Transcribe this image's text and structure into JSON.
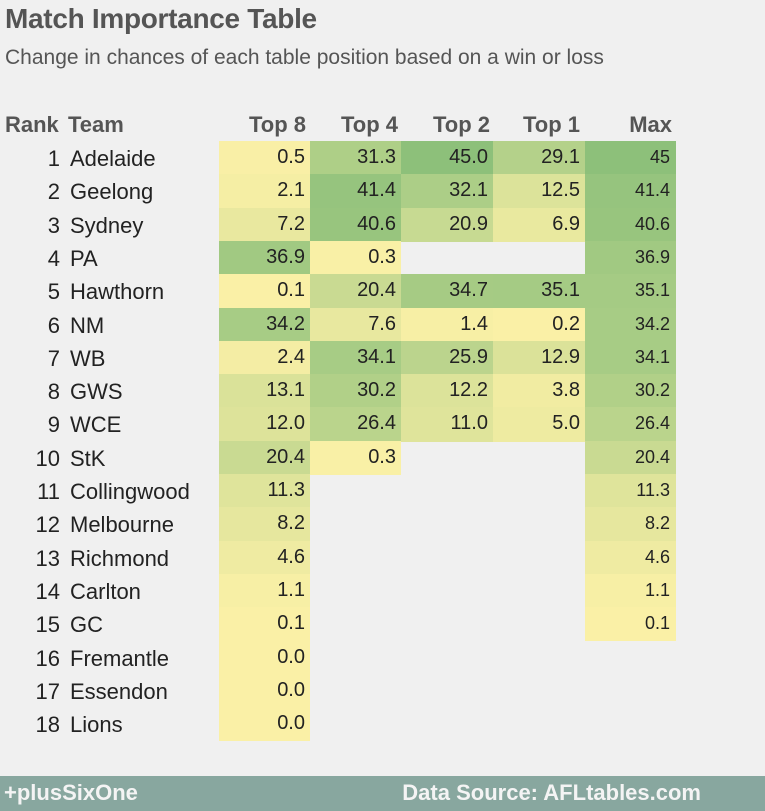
{
  "header": {
    "title": "Match Importance Table",
    "subtitle": "Change in chances of each table position based on a win or loss"
  },
  "chart_data": {
    "type": "table",
    "columns": [
      "Rank",
      "Team",
      "Top 8",
      "Top 4",
      "Top 2",
      "Top 1",
      "Max"
    ],
    "rows": [
      {
        "rank": "1",
        "team": "Adelaide",
        "top8": "0.5",
        "top4": "31.3",
        "top2": "45.0",
        "top1": "29.1",
        "max": "45"
      },
      {
        "rank": "2",
        "team": "Geelong",
        "top8": "2.1",
        "top4": "41.4",
        "top2": "32.1",
        "top1": "12.5",
        "max": "41.4"
      },
      {
        "rank": "3",
        "team": "Sydney",
        "top8": "7.2",
        "top4": "40.6",
        "top2": "20.9",
        "top1": "6.9",
        "max": "40.6"
      },
      {
        "rank": "4",
        "team": "PA",
        "top8": "36.9",
        "top4": "0.3",
        "top2": null,
        "top1": null,
        "max": "36.9"
      },
      {
        "rank": "5",
        "team": "Hawthorn",
        "top8": "0.1",
        "top4": "20.4",
        "top2": "34.7",
        "top1": "35.1",
        "max": "35.1"
      },
      {
        "rank": "6",
        "team": "NM",
        "top8": "34.2",
        "top4": "7.6",
        "top2": "1.4",
        "top1": "0.2",
        "max": "34.2"
      },
      {
        "rank": "7",
        "team": "WB",
        "top8": "2.4",
        "top4": "34.1",
        "top2": "25.9",
        "top1": "12.9",
        "max": "34.1"
      },
      {
        "rank": "8",
        "team": "GWS",
        "top8": "13.1",
        "top4": "30.2",
        "top2": "12.2",
        "top1": "3.8",
        "max": "30.2"
      },
      {
        "rank": "9",
        "team": "WCE",
        "top8": "12.0",
        "top4": "26.4",
        "top2": "11.0",
        "top1": "5.0",
        "max": "26.4"
      },
      {
        "rank": "10",
        "team": "StK",
        "top8": "20.4",
        "top4": "0.3",
        "top2": null,
        "top1": null,
        "max": "20.4"
      },
      {
        "rank": "11",
        "team": "Collingwood",
        "top8": "11.3",
        "top4": null,
        "top2": null,
        "top1": null,
        "max": "11.3"
      },
      {
        "rank": "12",
        "team": "Melbourne",
        "top8": "8.2",
        "top4": null,
        "top2": null,
        "top1": null,
        "max": "8.2"
      },
      {
        "rank": "13",
        "team": "Richmond",
        "top8": "4.6",
        "top4": null,
        "top2": null,
        "top1": null,
        "max": "4.6"
      },
      {
        "rank": "14",
        "team": "Carlton",
        "top8": "1.1",
        "top4": null,
        "top2": null,
        "top1": null,
        "max": "1.1"
      },
      {
        "rank": "15",
        "team": "GC",
        "top8": "0.1",
        "top4": null,
        "top2": null,
        "top1": null,
        "max": "0.1"
      },
      {
        "rank": "16",
        "team": "Fremantle",
        "top8": "0.0",
        "top4": null,
        "top2": null,
        "top1": null,
        "max": null
      },
      {
        "rank": "17",
        "team": "Essendon",
        "top8": "0.0",
        "top4": null,
        "top2": null,
        "top1": null,
        "max": null
      },
      {
        "rank": "18",
        "team": "Lions",
        "top8": "0.0",
        "top4": null,
        "top2": null,
        "top1": null,
        "max": null
      }
    ],
    "color_scale": {
      "low": "#faf0a6",
      "high": "#8dc07a",
      "domain": [
        0,
        45
      ]
    }
  },
  "footer": {
    "left": "+plusSixOne",
    "right": "Data Source: AFLtables.com"
  }
}
